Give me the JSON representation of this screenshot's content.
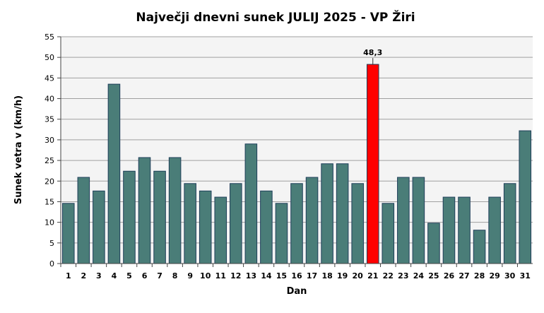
{
  "chart_data": {
    "type": "bar",
    "title": "Največji dnevni sunek JULIJ 2025 - VP Žiri",
    "xlabel": "Dan",
    "ylabel": "Sunek vetra v (km/h)",
    "ylim": [
      0,
      55
    ],
    "yticks": [
      0,
      5,
      10,
      15,
      20,
      25,
      30,
      35,
      40,
      45,
      50,
      55
    ],
    "grid": true,
    "categories": [
      "1",
      "2",
      "3",
      "4",
      "5",
      "6",
      "7",
      "8",
      "9",
      "10",
      "11",
      "12",
      "13",
      "14",
      "15",
      "16",
      "17",
      "18",
      "19",
      "20",
      "21",
      "22",
      "23",
      "24",
      "25",
      "26",
      "27",
      "28",
      "29",
      "30",
      "31"
    ],
    "values": [
      14.6,
      20.9,
      17.6,
      43.5,
      22.4,
      25.7,
      22.4,
      25.7,
      19.4,
      17.6,
      16.1,
      19.4,
      29.0,
      17.6,
      14.6,
      19.4,
      20.9,
      24.2,
      24.2,
      19.4,
      48.3,
      14.6,
      20.9,
      20.9,
      9.8,
      16.1,
      16.1,
      8.1,
      16.1,
      19.4,
      32.2
    ],
    "max_label": "48,3",
    "max_index": 20,
    "colors": {
      "bar": "#4a7d78",
      "max": "#ff0000",
      "plot_bg": "#f4f4f4",
      "grid": "#a0a0a0"
    }
  }
}
